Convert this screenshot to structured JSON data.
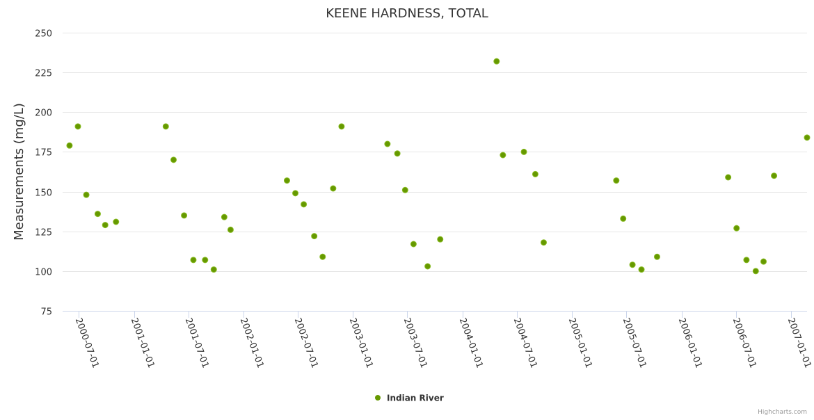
{
  "chart_data": {
    "type": "scatter",
    "title": "KEENE HARDNESS, TOTAL",
    "xlabel": "",
    "ylabel": "Measurements (mg/L)",
    "ylim": [
      75,
      250
    ],
    "yticks": [
      75,
      100,
      125,
      150,
      175,
      200,
      225,
      250
    ],
    "xlim": [
      "2000-05-08",
      "2007-02-23"
    ],
    "xticks": [
      "2000-07-01",
      "2001-01-01",
      "2001-07-01",
      "2002-01-01",
      "2002-07-01",
      "2003-01-01",
      "2003-07-01",
      "2004-01-01",
      "2004-07-01",
      "2005-01-01",
      "2005-07-01",
      "2006-01-01",
      "2006-07-01",
      "2007-01-01"
    ],
    "grid": true,
    "legend": "bottom-center",
    "credits": "Highcharts.com",
    "series": [
      {
        "name": "Indian River",
        "color": "#669900",
        "points": [
          [
            "2000-05-31",
            179
          ],
          [
            "2000-06-28",
            191
          ],
          [
            "2000-07-26",
            148
          ],
          [
            "2000-09-02",
            136
          ],
          [
            "2000-09-27",
            129
          ],
          [
            "2000-11-02",
            131
          ],
          [
            "2001-04-17",
            191
          ],
          [
            "2001-05-13",
            170
          ],
          [
            "2001-06-17",
            135
          ],
          [
            "2001-07-18",
            107
          ],
          [
            "2001-08-26",
            107
          ],
          [
            "2001-09-24",
            101
          ],
          [
            "2001-10-29",
            134
          ],
          [
            "2001-11-19",
            126
          ],
          [
            "2002-05-26",
            157
          ],
          [
            "2002-06-23",
            149
          ],
          [
            "2002-07-21",
            142
          ],
          [
            "2002-08-25",
            122
          ],
          [
            "2002-09-22",
            109
          ],
          [
            "2002-10-27",
            152
          ],
          [
            "2002-11-24",
            191
          ],
          [
            "2003-04-26",
            180
          ],
          [
            "2003-05-29",
            174
          ],
          [
            "2003-06-24",
            151
          ],
          [
            "2003-07-22",
            117
          ],
          [
            "2003-09-07",
            103
          ],
          [
            "2003-10-19",
            120
          ],
          [
            "2004-04-24",
            232
          ],
          [
            "2004-05-15",
            173
          ],
          [
            "2004-07-24",
            175
          ],
          [
            "2004-08-31",
            161
          ],
          [
            "2004-09-28",
            118
          ],
          [
            "2005-05-28",
            157
          ],
          [
            "2005-06-20",
            133
          ],
          [
            "2005-07-21",
            104
          ],
          [
            "2005-08-20",
            101
          ],
          [
            "2005-10-11",
            109
          ],
          [
            "2006-06-05",
            159
          ],
          [
            "2006-07-03",
            127
          ],
          [
            "2006-08-05",
            107
          ],
          [
            "2006-09-05",
            100
          ],
          [
            "2006-10-01",
            106
          ],
          [
            "2006-11-05",
            160
          ],
          [
            "2007-02-23",
            184
          ]
        ]
      }
    ]
  }
}
